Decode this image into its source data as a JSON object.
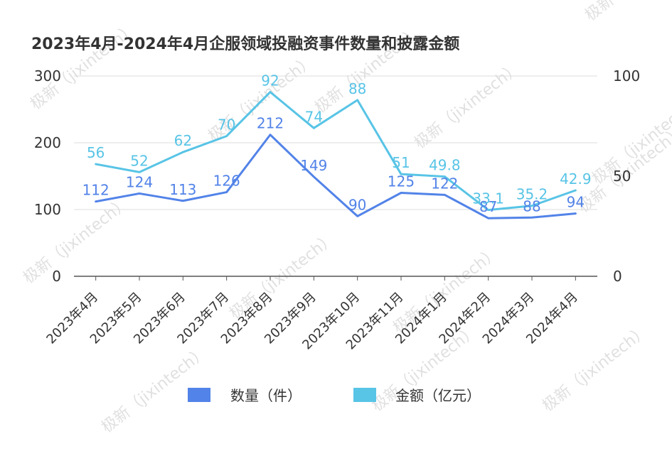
{
  "chart_data": {
    "type": "line",
    "title": "2023年4月-2024年4月企服领域投融资事件数量和披露金额",
    "categories": [
      "2023年4月",
      "2023年5月",
      "2023年6月",
      "2023年7月",
      "2023年8月",
      "2023年9月",
      "2023年10月",
      "2023年11月",
      "2024年1月",
      "2024年2月",
      "2024年3月",
      "2024年4月"
    ],
    "y_left": {
      "ticks": [
        "0",
        "100",
        "200",
        "300"
      ],
      "ylim": [
        0,
        300
      ]
    },
    "y_right": {
      "ticks": [
        "0",
        "50",
        "100"
      ],
      "ylim": [
        0,
        100
      ]
    },
    "series": [
      {
        "name": "数量（件）",
        "axis": "left",
        "color": "#5283e8",
        "values": [
          112,
          124,
          113,
          126,
          212,
          149,
          90,
          125,
          122,
          87,
          88,
          94
        ],
        "labels": [
          "112",
          "124",
          "113",
          "126",
          "212",
          "149",
          "90",
          "125",
          "122",
          "87",
          "88",
          "94"
        ]
      },
      {
        "name": "金额（亿元）",
        "axis": "right",
        "color": "#58c4e6",
        "values": [
          56,
          52,
          62,
          70,
          92,
          74,
          88,
          51,
          49.8,
          33.1,
          35.2,
          42.9
        ],
        "labels": [
          "56",
          "52",
          "62",
          "70",
          "92",
          "74",
          "88",
          "51",
          "49.8",
          "33.1",
          "35.2",
          "42.9"
        ]
      }
    ],
    "legend_position": "bottom"
  },
  "watermark": "极新（jixintech）"
}
